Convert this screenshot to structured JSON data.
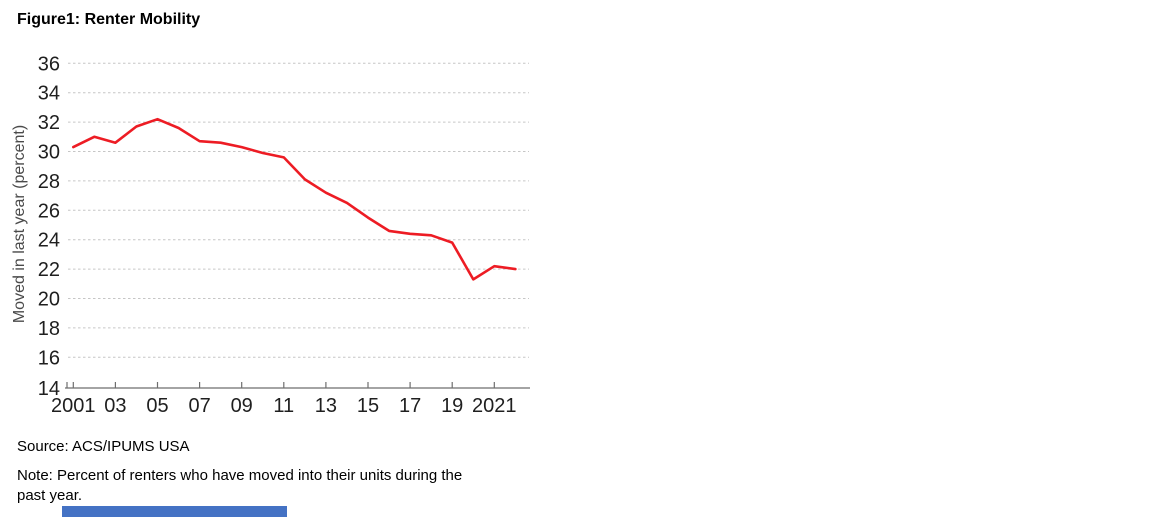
{
  "figure": {
    "title": "Figure1: Renter Mobility",
    "source": "Source: ACS/IPUMS USA",
    "note": {
      "line1": "Note: Percent of renters who have moved into their units during the",
      "line2": "past year."
    }
  },
  "colors": {
    "line": "#ed1c24",
    "grid": "#c6c6c6",
    "axis": "#6e6e6e",
    "tick_label": "#1f1f1f",
    "axis_title": "#4a4a4a",
    "selection_bar": "#4472c4"
  },
  "chart_data": {
    "type": "line",
    "title": "Figure1: Renter Mobility",
    "xlabel": "",
    "ylabel": "Moved in last year (percent)",
    "x": [
      2001,
      2002,
      2003,
      2004,
      2005,
      2006,
      2007,
      2008,
      2009,
      2010,
      2011,
      2012,
      2013,
      2014,
      2015,
      2016,
      2017,
      2018,
      2019,
      2020,
      2021,
      2022
    ],
    "series": [
      {
        "name": "Renter mobility",
        "values": [
          30.3,
          31.0,
          30.6,
          31.7,
          32.2,
          31.6,
          30.7,
          30.6,
          30.3,
          29.9,
          29.6,
          28.1,
          27.2,
          26.5,
          25.5,
          24.6,
          24.4,
          24.3,
          23.8,
          21.3,
          22.2,
          22.0
        ]
      }
    ],
    "ylim": [
      14,
      36
    ],
    "yticks": [
      14,
      16,
      18,
      20,
      22,
      24,
      26,
      28,
      30,
      32,
      34,
      36
    ],
    "xticks": [
      2001,
      2003,
      2005,
      2007,
      2009,
      2011,
      2013,
      2015,
      2017,
      2019,
      2021
    ],
    "xtick_labels": [
      "2001",
      "03",
      "05",
      "07",
      "09",
      "11",
      "13",
      "15",
      "17",
      "19",
      "2021"
    ],
    "grid": "horizontal-dashed",
    "legend": "none",
    "line_color": "#ed1c24"
  }
}
